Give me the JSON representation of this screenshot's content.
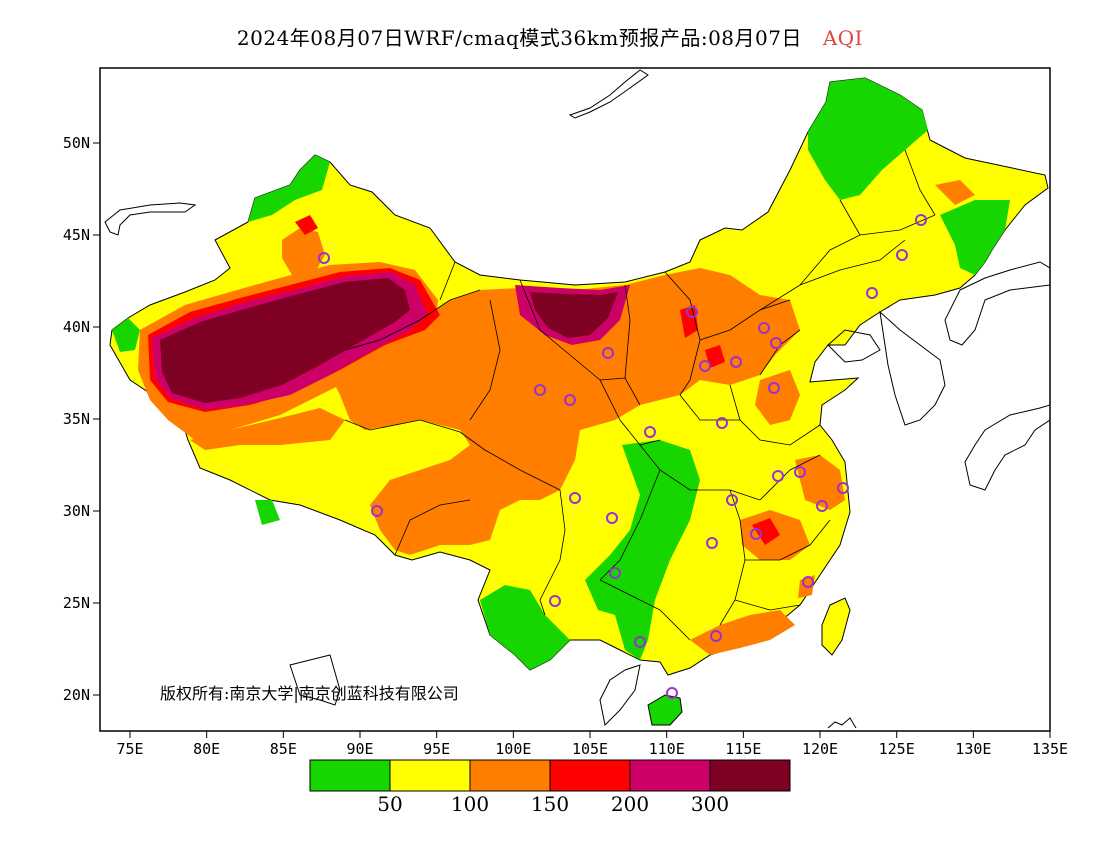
{
  "title": {
    "main": "2024年08月07日WRF/cmaq模式36km预报产品:08月07日",
    "variable": "AQI"
  },
  "axes": {
    "lon_ticks": [
      "75E",
      "80E",
      "85E",
      "90E",
      "95E",
      "100E",
      "105E",
      "110E",
      "115E",
      "120E",
      "125E",
      "130E",
      "135E"
    ],
    "lat_ticks": [
      "50N",
      "45N",
      "40N",
      "35N",
      "30N",
      "25N",
      "20N"
    ]
  },
  "legend": {
    "colors": [
      "#17d600",
      "#ffff00",
      "#ff7e00",
      "#ff0000",
      "#cc0066",
      "#7e0023"
    ],
    "labels": [
      "50",
      "100",
      "150",
      "200",
      "300"
    ]
  },
  "copyright": "版权所有:南京大学|南京创蓝科技有限公司",
  "colors": {
    "green": "#17d600",
    "yellow": "#ffff00",
    "orange": "#ff7e00",
    "red": "#ff0000",
    "magenta": "#cc0066",
    "maroon": "#7e0023",
    "station": "#9933cc"
  }
}
